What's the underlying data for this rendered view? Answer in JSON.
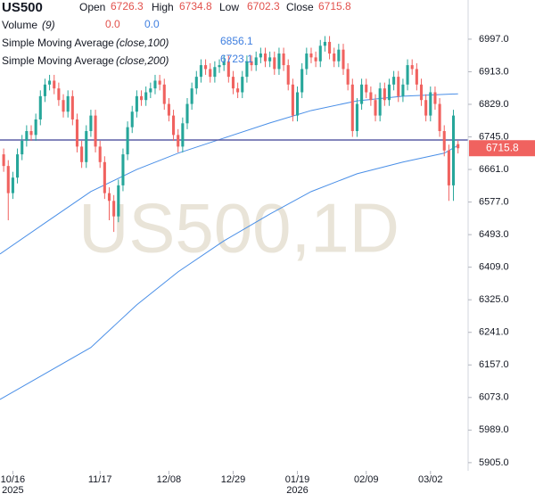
{
  "chart_data": {
    "type": "candlestick",
    "symbol": "US500",
    "watermark": "US500,1D",
    "ohlc_labels": {
      "open": "Open",
      "high": "High",
      "low": "Low",
      "close": "Close"
    },
    "volume": {
      "label": "Volume",
      "param": "(9)",
      "value_labels": [
        "0.0",
        "0.0"
      ]
    },
    "up_color": "#26a69a",
    "down_color": "#f0625f",
    "open": [
      6700,
      6670,
      6600,
      6640,
      6700,
      6735,
      6760,
      6750,
      6790,
      6850,
      6880,
      6890,
      6870,
      6840,
      6810,
      6850,
      6790,
      6720,
      6680,
      6760,
      6800,
      6720,
      6680,
      6600,
      6580,
      6540,
      6620,
      6700,
      6770,
      6810,
      6850,
      6840,
      6860,
      6870,
      6890,
      6880,
      6830,
      6800,
      6750,
      6720,
      6780,
      6830,
      6870,
      6900,
      6930,
      6920,
      6900,
      6925,
      6930,
      6940,
      6900,
      6870,
      6860,
      6900,
      6940,
      6930,
      6950,
      6960,
      6940,
      6950,
      6920,
      6960,
      6930,
      6880,
      6800,
      6860,
      6920,
      6960,
      6950,
      6940,
      6980,
      6990,
      6960,
      6940,
      6970,
      6920,
      6880,
      6760,
      6830,
      6880,
      6860,
      6840,
      6800,
      6870,
      6840,
      6880,
      6900,
      6850,
      6880,
      6930,
      6920,
      6880,
      6840,
      6800,
      6860,
      6830,
      6760,
      6710,
      6620,
      6726.3
    ],
    "high": [
      6715,
      6685,
      6655,
      6715,
      6750,
      6775,
      6775,
      6805,
      6865,
      6895,
      6905,
      6905,
      6885,
      6855,
      6865,
      6865,
      6805,
      6735,
      6775,
      6815,
      6815,
      6735,
      6695,
      6615,
      6595,
      6635,
      6715,
      6785,
      6825,
      6865,
      6865,
      6875,
      6885,
      6905,
      6905,
      6895,
      6845,
      6815,
      6765,
      6795,
      6845,
      6885,
      6915,
      6945,
      6945,
      6935,
      6940,
      6945,
      6955,
      6955,
      6915,
      6885,
      6915,
      6955,
      6955,
      6965,
      6975,
      6975,
      6965,
      6965,
      6975,
      6975,
      6945,
      6895,
      6875,
      6935,
      6975,
      6975,
      6965,
      6995,
      7005,
      7005,
      6975,
      6985,
      6985,
      6935,
      6895,
      6845,
      6895,
      6895,
      6875,
      6855,
      6885,
      6885,
      6895,
      6915,
      6915,
      6895,
      6945,
      6945,
      6935,
      6895,
      6855,
      6875,
      6875,
      6845,
      6775,
      6725,
      6815,
      6734.8
    ],
    "low": [
      6655,
      6530,
      6585,
      6625,
      6685,
      6720,
      6735,
      6735,
      6775,
      6835,
      6865,
      6855,
      6825,
      6795,
      6795,
      6775,
      6705,
      6665,
      6665,
      6745,
      6705,
      6665,
      6585,
      6530,
      6500,
      6525,
      6605,
      6685,
      6755,
      6795,
      6825,
      6825,
      6845,
      6855,
      6865,
      6815,
      6785,
      6735,
      6705,
      6705,
      6765,
      6815,
      6855,
      6885,
      6905,
      6885,
      6885,
      6910,
      6915,
      6885,
      6855,
      6845,
      6845,
      6885,
      6915,
      6915,
      6935,
      6925,
      6925,
      6905,
      6905,
      6915,
      6865,
      6785,
      6785,
      6845,
      6905,
      6935,
      6925,
      6925,
      6965,
      6945,
      6925,
      6925,
      6905,
      6865,
      6745,
      6745,
      6815,
      6845,
      6825,
      6785,
      6785,
      6825,
      6825,
      6865,
      6835,
      6835,
      6865,
      6905,
      6865,
      6825,
      6785,
      6785,
      6815,
      6745,
      6695,
      6580,
      6580,
      6702.3
    ],
    "close": [
      6670,
      6600,
      6640,
      6700,
      6735,
      6760,
      6750,
      6790,
      6850,
      6880,
      6890,
      6870,
      6840,
      6810,
      6850,
      6790,
      6720,
      6680,
      6760,
      6800,
      6720,
      6680,
      6600,
      6580,
      6540,
      6620,
      6700,
      6770,
      6810,
      6850,
      6840,
      6860,
      6870,
      6890,
      6880,
      6830,
      6800,
      6750,
      6720,
      6780,
      6830,
      6870,
      6900,
      6930,
      6920,
      6900,
      6925,
      6930,
      6940,
      6900,
      6870,
      6860,
      6900,
      6940,
      6930,
      6950,
      6960,
      6940,
      6950,
      6920,
      6960,
      6930,
      6880,
      6800,
      6860,
      6920,
      6960,
      6950,
      6940,
      6980,
      6990,
      6960,
      6940,
      6970,
      6920,
      6880,
      6760,
      6830,
      6880,
      6860,
      6840,
      6800,
      6870,
      6840,
      6880,
      6900,
      6850,
      6880,
      6930,
      6920,
      6880,
      6840,
      6800,
      6860,
      6830,
      6760,
      6710,
      6620,
      6800,
      6715.8
    ],
    "indicators": [
      {
        "name": "Simple Moving Average",
        "param": "(close,100)",
        "color": "#4a8fe7",
        "x": [
          -0.8,
          9,
          19,
          29,
          38,
          48,
          58,
          67,
          77,
          87,
          99
        ],
        "values": [
          6443,
          6523,
          6604,
          6661,
          6703,
          6742,
          6781,
          6813,
          6838,
          6850,
          6856.1
        ]
      },
      {
        "name": "Simple Moving Average",
        "param": "(close,200)",
        "color": "#4a8fe7",
        "x": [
          -0.8,
          19,
          29,
          38,
          48,
          58,
          67,
          77,
          87,
          96,
          99
        ],
        "values": [
          6068,
          6202,
          6312,
          6397,
          6477,
          6546,
          6604,
          6650,
          6680,
          6703,
          6723.1
        ]
      }
    ],
    "hline": {
      "value": 6737,
      "color": "#5b5ea6"
    },
    "xlim": [
      -0.8,
      101.2
    ],
    "ylim": [
      5884,
      7098
    ],
    "yticks": [
      {
        "value": 6997,
        "label": "6997.0"
      },
      {
        "value": 6913,
        "label": "6913.0"
      },
      {
        "value": 6829,
        "label": "6829.0"
      },
      {
        "value": 6745,
        "label": "6745.0"
      },
      {
        "value": 6661,
        "label": "6661.0"
      },
      {
        "value": 6577,
        "label": "6577.0"
      },
      {
        "value": 6493,
        "label": "6493.0"
      },
      {
        "value": 6409,
        "label": "6409.0"
      },
      {
        "value": 6325,
        "label": "6325.0"
      },
      {
        "value": 6241,
        "label": "6241.0"
      },
      {
        "value": 6157,
        "label": "6157.0"
      },
      {
        "value": 6073,
        "label": "6073.0"
      },
      {
        "value": 5989,
        "label": "5989.0"
      },
      {
        "value": 5905,
        "label": "5905.0"
      }
    ],
    "xticks": [
      {
        "value": 2,
        "label": "10/16",
        "year": "2025"
      },
      {
        "value": 21,
        "label": "11/17"
      },
      {
        "value": 36,
        "label": "12/08"
      },
      {
        "value": 50,
        "label": "12/29"
      },
      {
        "value": 64,
        "label": "01/19",
        "year": "2026"
      },
      {
        "value": 79,
        "label": "02/09"
      },
      {
        "value": 93,
        "label": "03/02"
      }
    ]
  }
}
